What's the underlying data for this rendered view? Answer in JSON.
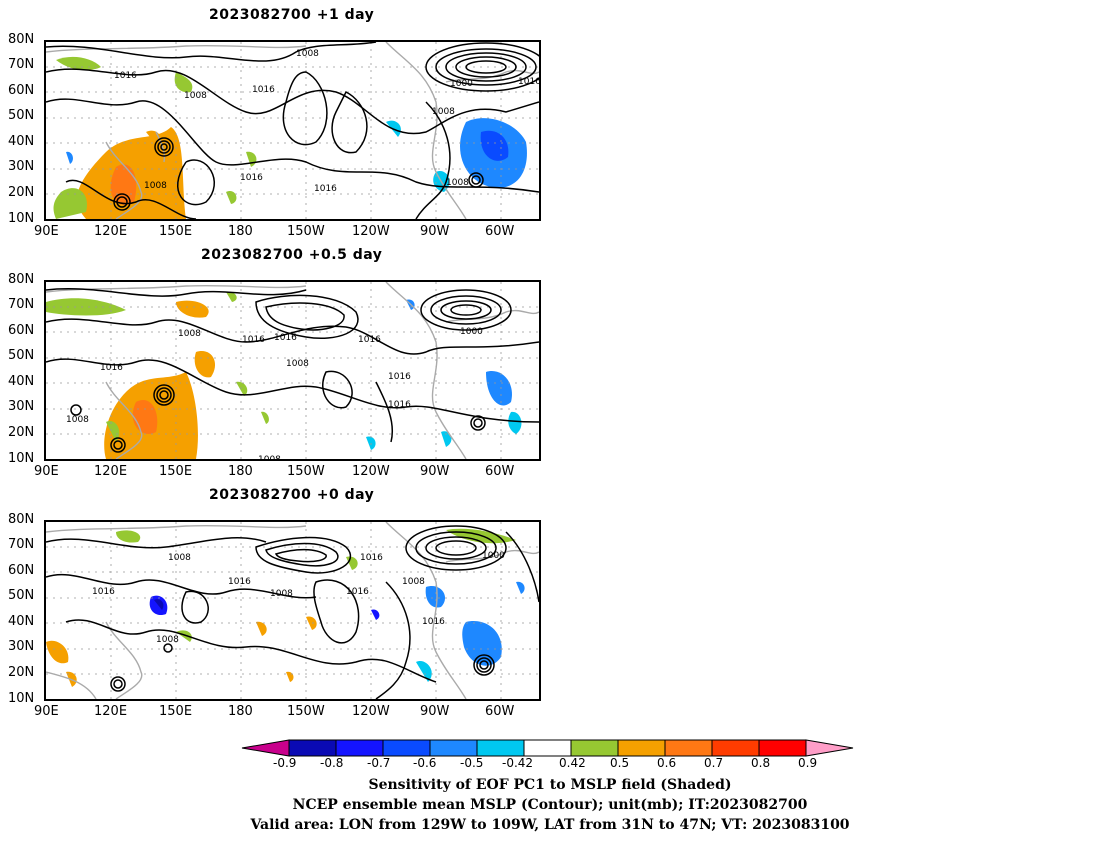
{
  "panels": [
    {
      "title": "2023082700  +1 day"
    },
    {
      "title": "2023082700  +0.5 day"
    },
    {
      "title": "2023082700  +0 day"
    }
  ],
  "lat_labels": [
    "80N",
    "70N",
    "60N",
    "50N",
    "40N",
    "30N",
    "20N",
    "10N"
  ],
  "lon_labels": [
    "90E",
    "120E",
    "150E",
    "180",
    "150W",
    "120W",
    "90W",
    "60W"
  ],
  "contour_labels": {
    "p1": [
      "1008",
      "1016",
      "1008",
      "1016",
      "1000",
      "1016",
      "1008",
      "1008",
      "1016",
      "1016",
      "1008"
    ],
    "p2": [
      "1008",
      "1016",
      "1008",
      "1016",
      "1016",
      "1016",
      "1000",
      "1016",
      "1016",
      "1008",
      "1008"
    ],
    "p3": [
      "1008",
      "1016",
      "1016",
      "1008",
      "1016",
      "1016",
      "1000",
      "1008",
      "1016",
      "1008"
    ]
  },
  "colorbar": {
    "ticks": [
      "-0.9",
      "-0.8",
      "-0.7",
      "-0.6",
      "-0.5",
      "-0.42",
      "0.42",
      "0.5",
      "0.6",
      "0.7",
      "0.8",
      "0.9"
    ],
    "colors": [
      "#c8008c",
      "#0a0ab4",
      "#1414ff",
      "#0a4bff",
      "#1e88ff",
      "#00c8f0",
      "#ffffff",
      "#96c832",
      "#f5a000",
      "#ff7814",
      "#ff3c00",
      "#ff0000",
      "#ff9ec8"
    ]
  },
  "caption": {
    "line1": "Sensitivity of EOF PC1 to MSLP field (Shaded)",
    "line2": "NCEP ensemble mean MSLP (Contour); unit(mb); IT:2023082700",
    "line3": "Valid area: LON from 129W to 109W, LAT from 31N to 47N; VT: 2023083100"
  }
}
